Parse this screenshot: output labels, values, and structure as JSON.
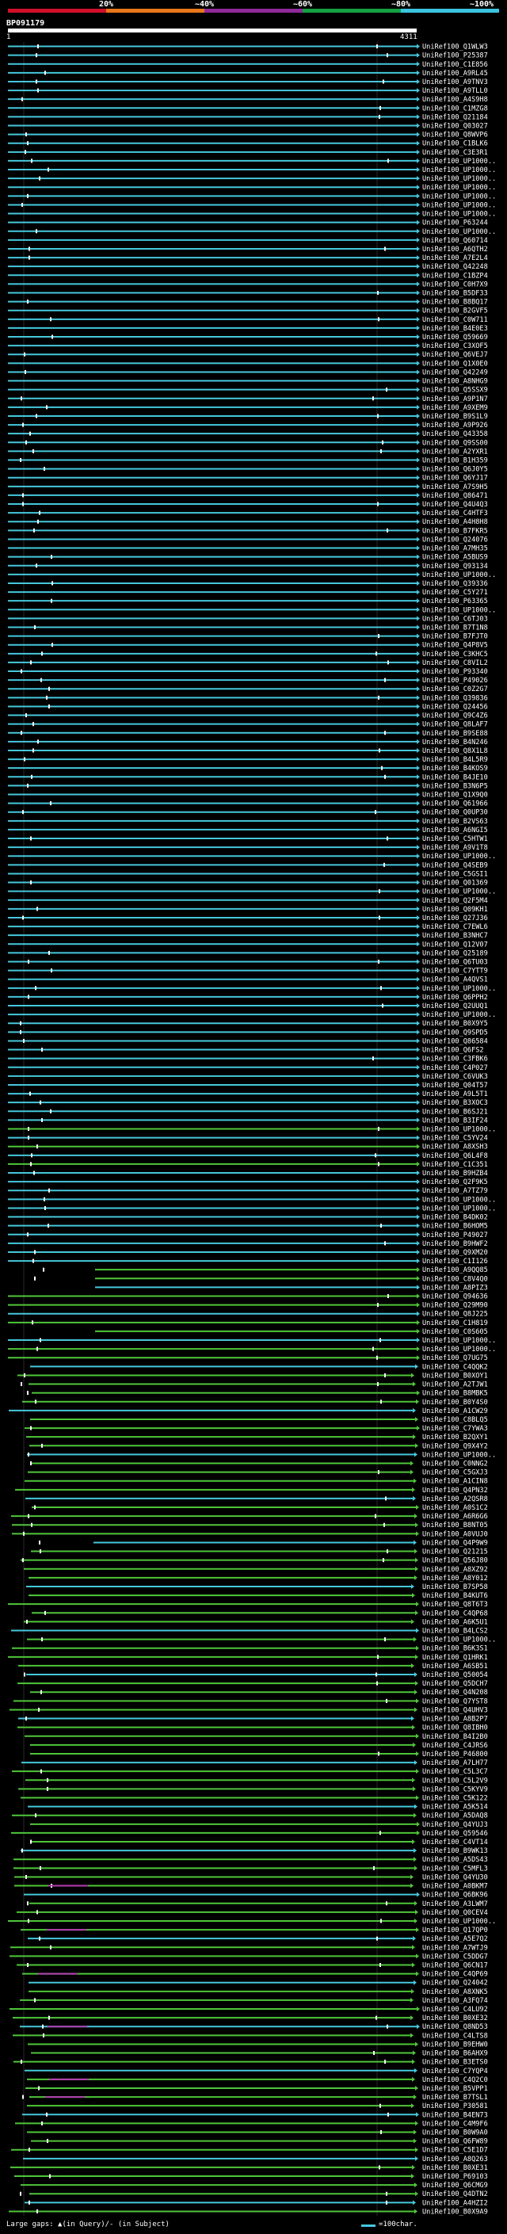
{
  "header": {
    "percent_labels": [
      "20%",
      "~40%",
      "~60%",
      "~80%",
      "~100%"
    ],
    "strip_colors": [
      "#d0102a",
      "#e8761a",
      "#8e2a9a",
      "#14a040",
      "#3cc4e0"
    ],
    "query_title": "BP091179",
    "coord_start": "1",
    "coord_end": "4311"
  },
  "colors": {
    "cyan": "#46c8dc",
    "green": "#4fc63a",
    "magenta": "#b43cb4",
    "white": "#ffffff"
  },
  "hits": [
    "UniRef100_Q1WLW3",
    "UniRef100_P25387",
    "UniRef100_C1E856",
    "UniRef100_A9RL45",
    "UniRef100_A9TNV3",
    "UniRef100_A9TLL0",
    "UniRef100_A4S9H8",
    "UniRef100_C1MZG8",
    "UniRef100_Q21184",
    "UniRef100_Q03027",
    "UniRef100_Q8WVP6",
    "UniRef100_C1BLK6",
    "UniRef100_C3E3R1",
    "UniRef100_UP1000..",
    "UniRef100_UP1000..",
    "UniRef100_UP1000..",
    "UniRef100_UP1000..",
    "UniRef100_UP1000..",
    "UniRef100_UP1000..",
    "UniRef100_UP1000..",
    "UniRef100_P63244",
    "UniRef100_UP1000..",
    "UniRef100_Q60714",
    "UniRef100_A6QTH2",
    "UniRef100_A7E2L4",
    "UniRef100_Q42248",
    "UniRef100_C1BZP4",
    "UniRef100_C0H7X9",
    "UniRef100_B5DF33",
    "UniRef100_B8BQ17",
    "UniRef100_B2GVF5",
    "UniRef100_C0W711",
    "UniRef100_B4E0E3",
    "UniRef100_Q59669",
    "UniRef100_C3XOF5",
    "UniRef100_Q6VEJ7",
    "UniRef100_Q1X0E0",
    "UniRef100_Q42249",
    "UniRef100_A8NHG9",
    "UniRef100_Q5SSX9",
    "UniRef100_A9P1N7",
    "UniRef100_A9XEM9",
    "UniRef100_B9S1L9",
    "UniRef100_A9P926",
    "UniRef100_Q43358",
    "UniRef100_Q9SS00",
    "UniRef100_A2YXR1",
    "UniRef100_B1H359",
    "UniRef100_Q6J0Y5",
    "UniRef100_Q6YJ17",
    "UniRef100_A7S9H5",
    "UniRef100_Q86471",
    "UniRef100_Q4U4Q3",
    "UniRef100_C4HTF3",
    "UniRef100_A4H8H8",
    "UniRef100_B7FKR5",
    "UniRef100_Q24076",
    "UniRef100_A7MH35",
    "UniRef100_A5BUS9",
    "UniRef100_Q93134",
    "UniRef100_UP1000..",
    "UniRef100_Q39336",
    "UniRef100_C5Y271",
    "UniRef100_P63365",
    "UniRef100_UP1000..",
    "UniRef100_C6TJ03",
    "UniRef100_B7T1N8",
    "UniRef100_B7FJT0",
    "UniRef100_Q4P8V5",
    "UniRef100_C3KHC5",
    "UniRef100_C8VIL2",
    "UniRef100_P93340",
    "UniRef100_P49026",
    "UniRef100_C0Z2G7",
    "UniRef100_Q39836",
    "UniRef100_Q24456",
    "UniRef100_Q9C4Z6",
    "UniRef100_Q8LAF7",
    "UniRef100_B9SE88",
    "UniRef100_B4N246",
    "UniRef100_Q8X1L8",
    "UniRef100_B4L5R9",
    "UniRef100_B4KOS9",
    "UniRef100_B4JE10",
    "UniRef100_B3N6P5",
    "UniRef100_Q1X9Q0",
    "UniRef100_Q61966",
    "UniRef100_Q0UP30",
    "UniRef100_B2VS63",
    "UniRef100_A6NGI5",
    "UniRef100_C5HTW1",
    "UniRef100_A9V1T8",
    "UniRef100_UP1000..",
    "UniRef100_Q4SEB9",
    "UniRef100_C5GSI1",
    "UniRef100_Q01369",
    "UniRef100_UP1000..",
    "UniRef100_Q2F5M4",
    "UniRef100_Q09KH1",
    "UniRef100_Q27J36",
    "UniRef100_C7EWL6",
    "UniRef100_B3NHC7",
    "UniRef100_Q12V07",
    "UniRef100_Q25189",
    "UniRef100_Q6TU03",
    "UniRef100_C7YTT9",
    "UniRef100_A4QVS1",
    "UniRef100_UP1000..",
    "UniRef100_Q6PPH2",
    "UniRef100_Q2UUQ1",
    "UniRef100_UP1000..",
    "UniRef100_B0X9Y5",
    "UniRef100_Q9SPD5",
    "UniRef100_Q86584",
    "UniRef100_Q6FS2",
    "UniRef100_C3FBK6",
    "UniRef100_C4P027",
    "UniRef100_C6VUK3",
    "UniRef100_Q04T57",
    "UniRef100_A9L5T1",
    "UniRef100_B3XOC3",
    "UniRef100_B6SJ21",
    "UniRef100_B3IF24",
    "UniRef100_UP1000..",
    "UniRef100_C5YV24",
    "UniRef100_A8XSH3",
    "UniRef100_Q6L4F8",
    "UniRef100_C1C351",
    "UniRef100_B9HZB4",
    "UniRef100_Q2F9K5",
    "UniRef100_A7TZ79",
    "UniRef100_UP1000..",
    "UniRef100_UP1000..",
    "UniRef100_B4DK02",
    "UniRef100_B6HOM5",
    "UniRef100_P49027",
    "UniRef100_B9HWF2",
    "UniRef100_Q9XM20",
    "UniRef100_C1I126",
    "UniRef100_A9QQ85",
    "UniRef100_C8V4Q0",
    "UniRef100_A8PIZ3",
    "UniRef100_Q94636",
    "UniRef100_Q29M90",
    "UniRef100_Q8J225",
    "UniRef100_C1H819",
    "UniRef100_C0S605",
    "UniRef100_UP1000..",
    "UniRef100_UP1000..",
    "UniRef100_Q7UG75",
    "UniRef100_C4QQK2",
    "UniRef100_B0XOY1",
    "UniRef100_A2TJW1",
    "UniRef100_B8MBK5",
    "UniRef100_B0Y4S0",
    "UniRef100_A1CW29",
    "UniRef100_C8BLQ5",
    "UniRef100_C7YWA3",
    "UniRef100_B2QXY1",
    "UniRef100_Q9X4Y2",
    "UniRef100_UP1000..",
    "UniRef100_C0NNG2",
    "UniRef100_C5GXJ3",
    "UniRef100_A1CIN8",
    "UniRef100_Q4PN32",
    "UniRef100_A2QSR8",
    "UniRef100_A0S1C2",
    "UniRef100_A6R6G6",
    "UniRef100_B8NT05",
    "UniRef100_A0VUJ0",
    "UniRef100_Q4P9W9",
    "UniRef100_Q21215",
    "UniRef100_Q56J80",
    "UniRef100_A8XZ92",
    "UniRef100_A8Y012",
    "UniRef100_B7SP58",
    "UniRef100_B4KUT6",
    "UniRef100_Q8T6T3",
    "UniRef100_C4QP68",
    "UniRef100_A6K5U1",
    "UniRef100_B4LCS2",
    "UniRef100_UP1000..",
    "UniRef100_B6K3S1",
    "UniRef100_Q1HRK1",
    "UniRef100_A6SB51",
    "UniRef100_Q50054",
    "UniRef100_Q5DCH7",
    "UniRef100_Q4N208",
    "UniRef100_Q7YST8",
    "UniRef100_Q4UHV3",
    "UniRef100_A8B2P7",
    "UniRef100_Q8IBH0",
    "UniRef100_B4I2B0",
    "UniRef100_C4JRS6",
    "UniRef100_P46800",
    "UniRef100_A7LH77",
    "UniRef100_C5L3C7",
    "UniRef100_C5L2V9",
    "UniRef100_C5KYV9",
    "UniRef100_C5K122",
    "UniRef100_A5K514",
    "UniRef100_A5DAQ8",
    "UniRef100_Q4YUJ3",
    "UniRef100_Q59546",
    "UniRef100_C4VT14",
    "UniRef100_B9WK13",
    "UniRef100_A5DS43",
    "UniRef100_C5MFL3",
    "UniRef100_Q4YU30",
    "UniRef100_A0BKM7",
    "UniRef100_Q6BK96",
    "UniRef100_A3LWM7",
    "UniRef100_Q0CEV4",
    "UniRef100_UP1000..",
    "UniRef100_Q17QP0",
    "UniRef100_A5E7Q2",
    "UniRef100_A7WTJ9",
    "UniRef100_C5DDG7",
    "UniRef100_Q6CN17",
    "UniRef100_C4QP69",
    "UniRef100_Q24042",
    "UniRef100_A8XNK5",
    "UniRef100_A3FQ74",
    "UniRef100_C4LU92",
    "UniRef100_B0XE32",
    "UniRef100_Q8ND53",
    "UniRef100_C4LTS8",
    "UniRef100_B9EHW0",
    "UniRef100_B6AHX9",
    "UniRef100_B3ETS0",
    "UniRef100_C7YQP4",
    "UniRef100_C4Q2C0",
    "UniRef100_B5VPP1",
    "UniRef100_B7TSL1",
    "UniRef100_P30581",
    "UniRef100_B4EN73",
    "UniRef100_C4M9F6",
    "UniRef100_B0W9A0",
    "UniRef100_Q6FW89",
    "UniRef100_C5E1D7",
    "UniRef100_A8Q263",
    "UniRef100_B0XE31",
    "UniRef100_P69103",
    "UniRef100_Q6CMG9",
    "UniRef100_Q4DTN2",
    "UniRef100_A4HZI2",
    "UniRef100_B0X9A9"
  ],
  "footer": {
    "legend": "Large gaps: ▲(in Query)/- (in Subject)",
    "scale": "=100char."
  }
}
